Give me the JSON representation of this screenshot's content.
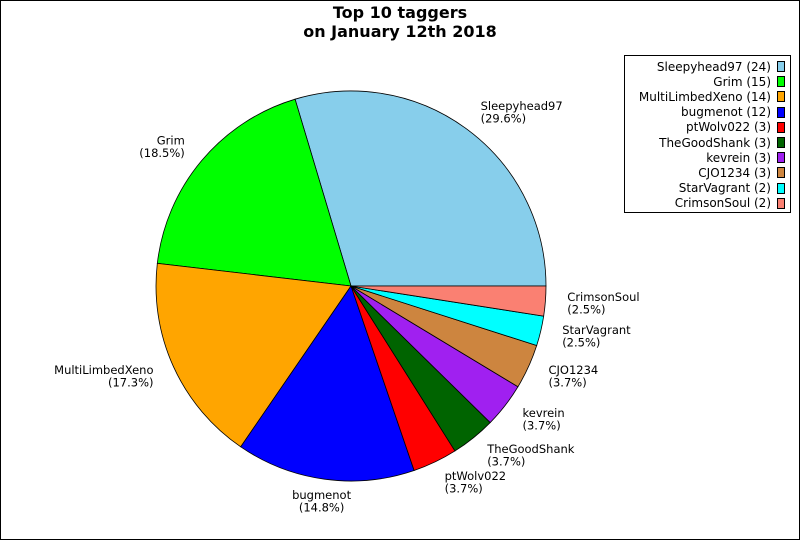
{
  "chart_data": {
    "type": "pie",
    "title": [
      "Top 10 taggers",
      "on January 12th 2018"
    ],
    "slices": [
      {
        "name": "Sleepyhead97",
        "value": 24,
        "percent": "29.6%",
        "color": "#87ceeb"
      },
      {
        "name": "Grim",
        "value": 15,
        "percent": "18.5%",
        "color": "#00ff00"
      },
      {
        "name": "MultiLimbedXeno",
        "value": 14,
        "percent": "17.3%",
        "color": "#ffa500"
      },
      {
        "name": "bugmenot",
        "value": 12,
        "percent": "14.8%",
        "color": "#0000ff"
      },
      {
        "name": "ptWolv022",
        "value": 3,
        "percent": "3.7%",
        "color": "#ff0000"
      },
      {
        "name": "TheGoodShank",
        "value": 3,
        "percent": "3.7%",
        "color": "#006400"
      },
      {
        "name": "kevrein",
        "value": 3,
        "percent": "3.7%",
        "color": "#a020f0"
      },
      {
        "name": "CJO1234",
        "value": 3,
        "percent": "3.7%",
        "color": "#cd853f"
      },
      {
        "name": "StarVagrant",
        "value": 2,
        "percent": "2.5%",
        "color": "#00ffff"
      },
      {
        "name": "CrimsonSoul",
        "value": 2,
        "percent": "2.5%",
        "color": "#fa8072"
      }
    ],
    "legend": {
      "placement": "top-right",
      "entries": [
        "Sleepyhead97 (24)",
        "Grim (15)",
        "MultiLimbedXeno (14)",
        "bugmenot (12)",
        "ptWolv022 (3)",
        "TheGoodShank (3)",
        "kevrein (3)",
        "CJO1234 (3)",
        "StarVagrant (2)",
        "CrimsonSoul (2)"
      ]
    }
  }
}
